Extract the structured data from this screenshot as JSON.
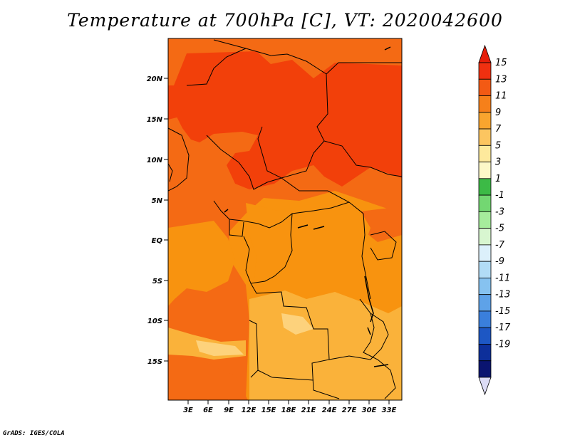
{
  "title": "Temperature at 700hPa [C], VT: 2020042600",
  "credit": "GrADS: IGES/COLA",
  "map": {
    "lat_ticks": [
      "20N",
      "15N",
      "10N",
      "5N",
      "EQ",
      "5S",
      "10S",
      "15S"
    ],
    "lon_ticks": [
      "3E",
      "6E",
      "9E",
      "12E",
      "15E",
      "18E",
      "21E",
      "24E",
      "27E",
      "30E",
      "33E"
    ],
    "field_colors": {
      "c13_15": "#f2400a",
      "c11_13": "#f46a14",
      "c9_11": "#f8930f",
      "c7_9": "#fab23a",
      "c5_7": "#fdd27c"
    }
  },
  "colorbar": {
    "labels": [
      "15",
      "13",
      "11",
      "9",
      "7",
      "5",
      "3",
      "1",
      "-1",
      "-3",
      "-5",
      "-7",
      "-9",
      "-11",
      "-13",
      "-15",
      "-17",
      "-19"
    ],
    "colors": [
      "#f03010",
      "#f35a14",
      "#f6801a",
      "#f9a52e",
      "#fcc560",
      "#fde99c",
      "#fdf8c8",
      "#3cba46",
      "#73d772",
      "#a6ec9c",
      "#d8f6d0",
      "#dcf0fb",
      "#b2dcf6",
      "#86c2f0",
      "#5ea2e8",
      "#3a7fdc",
      "#1d57c4",
      "#0d2f9a",
      "#0a1470"
    ],
    "top_cap": "#e61e0a",
    "bottom_cap": "#dcdcf5"
  }
}
